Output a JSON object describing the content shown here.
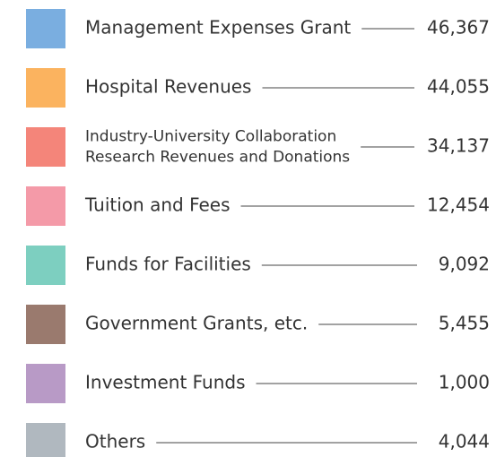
{
  "items": [
    {
      "label_lines": [
        "Management Expenses Grant"
      ],
      "value": "46,367",
      "color": "#7aaee0"
    },
    {
      "label_lines": [
        "Hospital Revenues"
      ],
      "value": "44,055",
      "color": "#fbb35f"
    },
    {
      "label_lines": [
        "Industry-University Collaboration",
        "Research Revenues and Donations"
      ],
      "value": "34,137",
      "color": "#f4857a"
    },
    {
      "label_lines": [
        "Tuition and Fees"
      ],
      "value": "12,454",
      "color": "#f49aa8"
    },
    {
      "label_lines": [
        "Funds for Facilities"
      ],
      "value": "9,092",
      "color": "#7dcfc0"
    },
    {
      "label_lines": [
        "Government Grants, etc."
      ],
      "value": "5,455",
      "color": "#9a7a6e"
    },
    {
      "label_lines": [
        "Investment Funds"
      ],
      "value": "1,000",
      "color": "#b89ac6"
    },
    {
      "label_lines": [
        "Others"
      ],
      "value": "4,044",
      "color": "#b0b8bf"
    }
  ]
}
